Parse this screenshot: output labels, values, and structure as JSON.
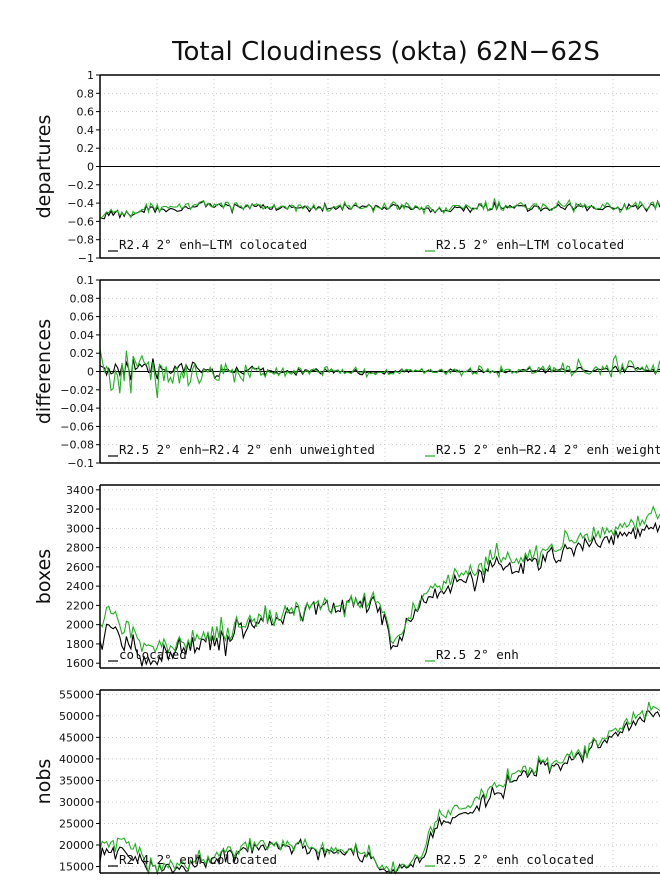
{
  "title": "Total Cloudiness (okta) 62N−62S",
  "colors": {
    "black_series": "#000000",
    "green_series": "#22b022",
    "grid": "#b8b8b8"
  },
  "chart_data": [
    {
      "type": "line",
      "ylabel": "departures",
      "ylim": [
        -1,
        1
      ],
      "yticks": [
        -1,
        -0.8,
        -0.6,
        -0.4,
        -0.2,
        0,
        0.2,
        0.4,
        0.6,
        0.8,
        1
      ],
      "ytick_labels": [
        "−1",
        "−0.8",
        "−0.6",
        "−0.4",
        "−0.2",
        "0",
        "0.2",
        "0.4",
        "0.6",
        "0.8",
        "1"
      ],
      "zero_line": 0,
      "legend": [
        "R2.4 2° enh−LTM colocated",
        "R2.5 2° enh−LTM colocated"
      ],
      "series": [
        {
          "name": "R2.4 2° enh−LTM colocated",
          "color": "#000000",
          "anchors": [
            [
              0,
              -0.58
            ],
            [
              8,
              -0.5
            ],
            [
              15,
              -0.52
            ],
            [
              25,
              -0.45
            ],
            [
              35,
              -0.48
            ],
            [
              45,
              -0.42
            ],
            [
              60,
              -0.45
            ],
            [
              75,
              -0.44
            ],
            [
              90,
              -0.45
            ],
            [
              110,
              -0.44
            ],
            [
              130,
              -0.45
            ],
            [
              150,
              -0.46
            ],
            [
              170,
              -0.45
            ],
            [
              190,
              -0.44
            ],
            [
              210,
              -0.45
            ],
            [
              235,
              -0.44
            ],
            [
              250,
              -0.45
            ]
          ],
          "noise": 0.035
        },
        {
          "name": "R2.5 2° enh−LTM colocated",
          "color": "#22b022",
          "anchors": [
            [
              0,
              -0.56
            ],
            [
              8,
              -0.5
            ],
            [
              15,
              -0.5
            ],
            [
              25,
              -0.44
            ],
            [
              35,
              -0.46
            ],
            [
              45,
              -0.41
            ],
            [
              60,
              -0.44
            ],
            [
              75,
              -0.43
            ],
            [
              90,
              -0.44
            ],
            [
              110,
              -0.43
            ],
            [
              130,
              -0.45
            ],
            [
              150,
              -0.45
            ],
            [
              170,
              -0.44
            ],
            [
              190,
              -0.43
            ],
            [
              210,
              -0.44
            ],
            [
              235,
              -0.43
            ],
            [
              250,
              -0.44
            ]
          ],
          "noise": 0.045
        }
      ]
    },
    {
      "type": "line",
      "ylabel": "differences",
      "ylim": [
        -0.1,
        0.1
      ],
      "yticks": [
        -0.1,
        -0.08,
        -0.06,
        -0.04,
        -0.02,
        0,
        0.02,
        0.04,
        0.06,
        0.08,
        0.1
      ],
      "ytick_labels": [
        "−0.1",
        "−0.08",
        "−0.06",
        "−0.04",
        "−0.02",
        "0",
        "0.02",
        "0.04",
        "0.06",
        "0.08",
        "0.1"
      ],
      "zero_line": 0,
      "legend": [
        "R2.5 2° enh−R2.4 2° enh unweighted",
        "R2.5 2° enh−R2.4 2° enh weight"
      ],
      "series": [
        {
          "name": "R2.5 2° enh−R2.4 2° enh unweighted",
          "color": "#000000",
          "anchors": [
            [
              0,
              0
            ],
            [
              30,
              0.002
            ],
            [
              60,
              0.001
            ],
            [
              100,
              0
            ],
            [
              150,
              0
            ],
            [
              200,
              0.001
            ],
            [
              250,
              0.002
            ]
          ],
          "noise": 0.005,
          "noise_profile": [
            [
              0,
              2.0
            ],
            [
              50,
              1.4
            ],
            [
              90,
              0.7
            ],
            [
              150,
              0.4
            ],
            [
              250,
              0.6
            ]
          ]
        },
        {
          "name": "R2.5 2° enh−R2.4 2° enh weight",
          "color": "#22b022",
          "anchors": [
            [
              0,
              0.005
            ],
            [
              10,
              -0.01
            ],
            [
              20,
              0.0
            ],
            [
              30,
              -0.01
            ],
            [
              50,
              0.0
            ],
            [
              100,
              0.0
            ],
            [
              150,
              0.0
            ],
            [
              200,
              0.001
            ],
            [
              250,
              0.004
            ]
          ],
          "noise": 0.009,
          "noise_profile": [
            [
              0,
              2.2
            ],
            [
              40,
              1.6
            ],
            [
              80,
              0.8
            ],
            [
              130,
              0.4
            ],
            [
              200,
              0.5
            ],
            [
              250,
              0.9
            ]
          ]
        }
      ]
    },
    {
      "type": "line",
      "ylabel": "boxes",
      "ylim": [
        1550,
        3450
      ],
      "yticks": [
        1600,
        1800,
        2000,
        2200,
        2400,
        2600,
        2800,
        3000,
        3200,
        3400
      ],
      "ytick_labels": [
        "1600",
        "1800",
        "2000",
        "2200",
        "2400",
        "2600",
        "2800",
        "3000",
        "3200",
        "3400"
      ],
      "legend": [
        "colocated",
        "R2.5 2° enh"
      ],
      "series": [
        {
          "name": "colocated",
          "color": "#000000",
          "anchors": [
            [
              0,
              1850
            ],
            [
              5,
              1950
            ],
            [
              10,
              1850
            ],
            [
              18,
              1700
            ],
            [
              25,
              1650
            ],
            [
              35,
              1720
            ],
            [
              50,
              1820
            ],
            [
              60,
              1900
            ],
            [
              75,
              2050
            ],
            [
              90,
              2150
            ],
            [
              105,
              2180
            ],
            [
              115,
              2220
            ],
            [
              125,
              2250
            ],
            [
              128,
              2100
            ],
            [
              133,
              1750
            ],
            [
              140,
              2050
            ],
            [
              150,
              2300
            ],
            [
              165,
              2450
            ],
            [
              180,
              2600
            ],
            [
              195,
              2650
            ],
            [
              210,
              2750
            ],
            [
              225,
              2850
            ],
            [
              240,
              2950
            ],
            [
              250,
              3000
            ]
          ],
          "noise": 90
        },
        {
          "name": "R2.5 2° enh",
          "color": "#22b022",
          "anchors": [
            [
              0,
              2050
            ],
            [
              5,
              2100
            ],
            [
              10,
              2000
            ],
            [
              18,
              1850
            ],
            [
              25,
              1800
            ],
            [
              35,
              1820
            ],
            [
              50,
              1880
            ],
            [
              60,
              1950
            ],
            [
              75,
              2080
            ],
            [
              90,
              2170
            ],
            [
              105,
              2200
            ],
            [
              115,
              2240
            ],
            [
              125,
              2280
            ],
            [
              128,
              2150
            ],
            [
              133,
              1800
            ],
            [
              140,
              2100
            ],
            [
              150,
              2380
            ],
            [
              165,
              2520
            ],
            [
              180,
              2680
            ],
            [
              195,
              2720
            ],
            [
              210,
              2830
            ],
            [
              225,
              2930
            ],
            [
              240,
              3050
            ],
            [
              250,
              3150
            ]
          ],
          "noise": 90
        }
      ]
    },
    {
      "type": "line",
      "ylabel": "nobs",
      "ylim": [
        13500,
        56000
      ],
      "yticks": [
        15000,
        20000,
        25000,
        30000,
        35000,
        40000,
        45000,
        50000,
        55000
      ],
      "ytick_labels": [
        "15000",
        "20000",
        "25000",
        "30000",
        "35000",
        "40000",
        "45000",
        "50000",
        "55000"
      ],
      "legend": [
        "R2.4 2° enh colocated",
        "R2.5 2° enh colocated"
      ],
      "series": [
        {
          "name": "R2.4 2° enh colocated",
          "color": "#000000",
          "anchors": [
            [
              0,
              17500
            ],
            [
              8,
              19000
            ],
            [
              15,
              17000
            ],
            [
              22,
              15000
            ],
            [
              30,
              14200
            ],
            [
              40,
              14800
            ],
            [
              50,
              16500
            ],
            [
              60,
              18500
            ],
            [
              70,
              19500
            ],
            [
              80,
              19000
            ],
            [
              95,
              19500
            ],
            [
              105,
              19000
            ],
            [
              115,
              18500
            ],
            [
              125,
              16000
            ],
            [
              130,
              14000
            ],
            [
              135,
              14500
            ],
            [
              145,
              16000
            ],
            [
              152,
              23000
            ],
            [
              160,
              26000
            ],
            [
              170,
              28000
            ],
            [
              180,
              32000
            ],
            [
              190,
              36000
            ],
            [
              200,
              38000
            ],
            [
              210,
              39000
            ],
            [
              220,
              41000
            ],
            [
              230,
              44000
            ],
            [
              240,
              47000
            ],
            [
              250,
              51000
            ]
          ],
          "noise": 1500
        },
        {
          "name": "R2.5 2° enh colocated",
          "color": "#22b022",
          "anchors": [
            [
              0,
              20000
            ],
            [
              8,
              21500
            ],
            [
              15,
              19000
            ],
            [
              22,
              16000
            ],
            [
              30,
              15000
            ],
            [
              40,
              15500
            ],
            [
              50,
              17000
            ],
            [
              60,
              19000
            ],
            [
              70,
              20000
            ],
            [
              80,
              19500
            ],
            [
              95,
              20000
            ],
            [
              105,
              19500
            ],
            [
              115,
              19000
            ],
            [
              125,
              16500
            ],
            [
              130,
              14500
            ],
            [
              135,
              15000
            ],
            [
              145,
              17000
            ],
            [
              152,
              25000
            ],
            [
              160,
              28000
            ],
            [
              170,
              30000
            ],
            [
              180,
              34000
            ],
            [
              190,
              37000
            ],
            [
              200,
              39000
            ],
            [
              210,
              40000
            ],
            [
              220,
              42000
            ],
            [
              230,
              45000
            ],
            [
              240,
              48000
            ],
            [
              250,
              52000
            ]
          ],
          "noise": 1500
        }
      ]
    }
  ]
}
